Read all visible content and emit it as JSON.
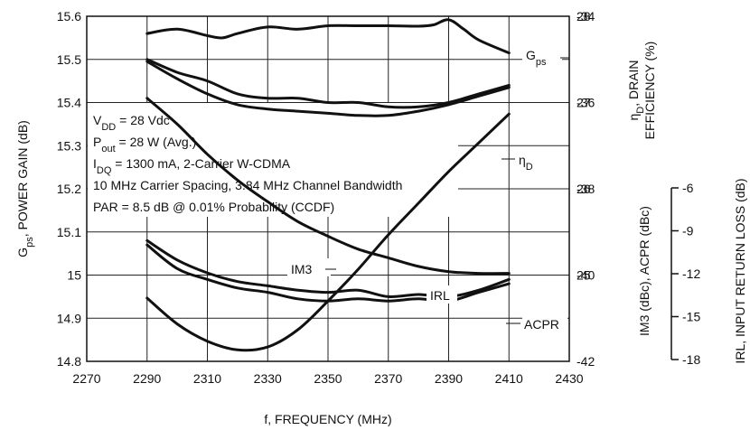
{
  "chart_data": {
    "type": "line",
    "xlabel": "f, FREQUENCY (MHz)",
    "x_ticks": [
      "2270",
      "2290",
      "2310",
      "2330",
      "2350",
      "2370",
      "2390",
      "2410",
      "2430"
    ],
    "xlim": [
      2270,
      2430
    ],
    "left_axis": {
      "label_parts": [
        "G",
        "ps",
        ", POWER GAIN (dB)"
      ],
      "ylim": [
        14.8,
        15.6
      ],
      "ticks": [
        "15.6",
        "15.5",
        "15.4",
        "15.3",
        "15.2",
        "15.1",
        "15",
        "14.9",
        "14.8"
      ]
    },
    "right_axis_eff": {
      "label_line1_parts": [
        "η",
        "D",
        ", DRAIN"
      ],
      "label_line2": "EFFICIENCY (%)",
      "ylim": [
        24,
        28
      ],
      "ticks": [
        "28",
        "27",
        "26",
        "25"
      ]
    },
    "right_axis_dist": {
      "label": "IM3 (dBc), ACPR (dBc)",
      "ylim": [
        -42,
        -34
      ],
      "ticks": [
        "-34",
        "-36",
        "-38",
        "-40",
        "-42"
      ]
    },
    "right_axis_irl": {
      "label": "IRL, INPUT RETURN LOSS (dB)",
      "ylim": [
        -18,
        -6
      ],
      "ticks": [
        "-6",
        "-9",
        "-12",
        "-15",
        "-18"
      ]
    },
    "conditions": {
      "vdd": [
        "V",
        "DD",
        " = 28 Vdc"
      ],
      "pout": [
        "P",
        "out",
        " = 28 W (Avg.)"
      ],
      "idq": [
        "I",
        "DQ",
        " = 1300 mA, 2-Carrier W-CDMA"
      ],
      "spacing": "10 MHz Carrier Spacing, 3.84 MHz Channel Bandwidth",
      "par": "PAR = 8.5 dB @ 0.01% Probability (CCDF)"
    },
    "series": [
      {
        "name": "Gps",
        "label_parts": [
          "G",
          "ps"
        ],
        "axis": "left",
        "x": [
          2290,
          2300,
          2310,
          2315,
          2320,
          2330,
          2340,
          2350,
          2360,
          2370,
          2380,
          2385,
          2390,
          2395,
          2400,
          2410
        ],
        "y": [
          15.56,
          15.57,
          15.555,
          15.55,
          15.56,
          15.575,
          15.57,
          15.578,
          15.578,
          15.578,
          15.577,
          15.58,
          15.592,
          15.57,
          15.545,
          15.515
        ]
      },
      {
        "name": "ηD",
        "label_parts": [
          "η",
          "D"
        ],
        "axis": "eff",
        "x": [
          2290,
          2300,
          2310,
          2320,
          2330,
          2340,
          2350,
          2360,
          2370,
          2380,
          2390,
          2400,
          2410
        ],
        "y": [
          27.05,
          26.75,
          26.4,
          26.1,
          25.85,
          25.62,
          25.45,
          25.3,
          25.2,
          25.1,
          25.04,
          25.02,
          25.02
        ]
      },
      {
        "name": "IM3",
        "label_parts": [
          "IM3"
        ],
        "axis": "dist",
        "x": [
          2290,
          2300,
          2310,
          2320,
          2330,
          2340,
          2350,
          2360,
          2370,
          2380,
          2390,
          2400,
          2410
        ],
        "y": [
          -35.0,
          -35.3,
          -35.5,
          -35.8,
          -35.9,
          -35.9,
          -36.0,
          -36.0,
          -36.1,
          -36.1,
          -36.0,
          -35.8,
          -35.6
        ]
      },
      {
        "name": "IM3 (2)",
        "axis": "dist",
        "x": [
          2290,
          2300,
          2310,
          2320,
          2330,
          2340,
          2350,
          2360,
          2370,
          2380,
          2390,
          2400,
          2410
        ],
        "y": [
          -35.05,
          -35.45,
          -35.8,
          -36.05,
          -36.15,
          -36.2,
          -36.25,
          -36.3,
          -36.3,
          -36.2,
          -36.05,
          -35.85,
          -35.65
        ]
      },
      {
        "name": "ACPR",
        "label_parts": [
          "ACPR"
        ],
        "axis": "dist",
        "x": [
          2290,
          2300,
          2310,
          2320,
          2330,
          2340,
          2350,
          2360,
          2370,
          2380,
          2390,
          2400,
          2410
        ],
        "y": [
          -39.2,
          -39.65,
          -39.95,
          -40.15,
          -40.25,
          -40.35,
          -40.4,
          -40.35,
          -40.5,
          -40.45,
          -40.5,
          -40.35,
          -40.1
        ]
      },
      {
        "name": "ACPR (2)",
        "axis": "dist",
        "x": [
          2290,
          2300,
          2310,
          2320,
          2330,
          2340,
          2350,
          2360,
          2370,
          2380,
          2390,
          2400,
          2410
        ],
        "y": [
          -39.3,
          -39.85,
          -40.1,
          -40.3,
          -40.4,
          -40.55,
          -40.6,
          -40.55,
          -40.6,
          -40.55,
          -40.6,
          -40.4,
          -40.2
        ]
      },
      {
        "name": "IRL",
        "label_parts": [
          "IRL"
        ],
        "axis": "irl",
        "x": [
          2290,
          2300,
          2310,
          2320,
          2330,
          2340,
          2350,
          2360,
          2370,
          2380,
          2390,
          2400,
          2410
        ],
        "y": [
          -15.8,
          -16.7,
          -17.3,
          -17.6,
          -17.5,
          -16.9,
          -15.9,
          -14.8,
          -13.6,
          -12.5,
          -11.4,
          -10.4,
          -9.4
        ]
      }
    ]
  }
}
